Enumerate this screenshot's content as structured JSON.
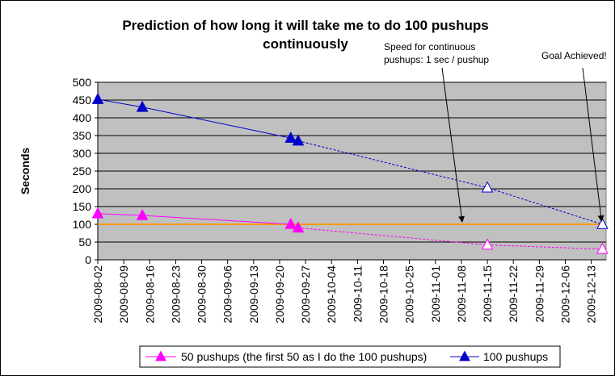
{
  "chart_data": {
    "type": "line",
    "title_lines": [
      "Prediction of how long it will take me to do 100 pushups",
      "continuously"
    ],
    "ylabel": "Seconds",
    "xlabel": "",
    "ylim": [
      0,
      500
    ],
    "y_ticks": [
      0,
      50,
      100,
      150,
      200,
      250,
      300,
      350,
      400,
      450,
      500
    ],
    "x_range": [
      "2009-08-02",
      "2009-12-17"
    ],
    "x_tick_labels": [
      "2009-08-02",
      "2009-08-09",
      "2009-08-16",
      "2009-08-23",
      "2009-08-30",
      "2009-09-06",
      "2009-09-13",
      "2009-09-20",
      "2009-09-27",
      "2009-10-04",
      "2009-10-11",
      "2009-10-18",
      "2009-10-25",
      "2009-11-01",
      "2009-11-08",
      "2009-11-15",
      "2009-11-22",
      "2009-11-29",
      "2009-12-06",
      "2009-12-13"
    ],
    "grid": true,
    "legend_position": "bottom",
    "reference_line": {
      "value": 100,
      "color": "#FF9900"
    },
    "series": [
      {
        "name": "50 pushups (the first 50 as I do the 100 pushups)",
        "color": "#FF00FF",
        "marker": "triangle",
        "actual": [
          {
            "x": "2009-08-02",
            "y": 130
          },
          {
            "x": "2009-08-14",
            "y": 125
          },
          {
            "x": "2009-09-23",
            "y": 100
          },
          {
            "x": "2009-09-25",
            "y": 90
          }
        ],
        "predicted": [
          {
            "x": "2009-11-15",
            "y": 42
          },
          {
            "x": "2009-12-16",
            "y": 30
          }
        ]
      },
      {
        "name": "100 pushups",
        "color": "#0000CC",
        "marker": "triangle",
        "actual": [
          {
            "x": "2009-08-02",
            "y": 452
          },
          {
            "x": "2009-08-14",
            "y": 430
          },
          {
            "x": "2009-09-23",
            "y": 343
          },
          {
            "x": "2009-09-25",
            "y": 335
          }
        ],
        "predicted": [
          {
            "x": "2009-11-15",
            "y": 203
          },
          {
            "x": "2009-12-16",
            "y": 100
          }
        ]
      }
    ],
    "annotations": [
      {
        "lines": [
          "Speed for continuous",
          "pushups: 1 sec / pushup"
        ],
        "target": {
          "x": "2009-11-08",
          "y": 100
        }
      },
      {
        "lines": [
          "Goal Achieved!"
        ],
        "target": {
          "x": "2009-12-16",
          "y": 100
        }
      }
    ]
  }
}
